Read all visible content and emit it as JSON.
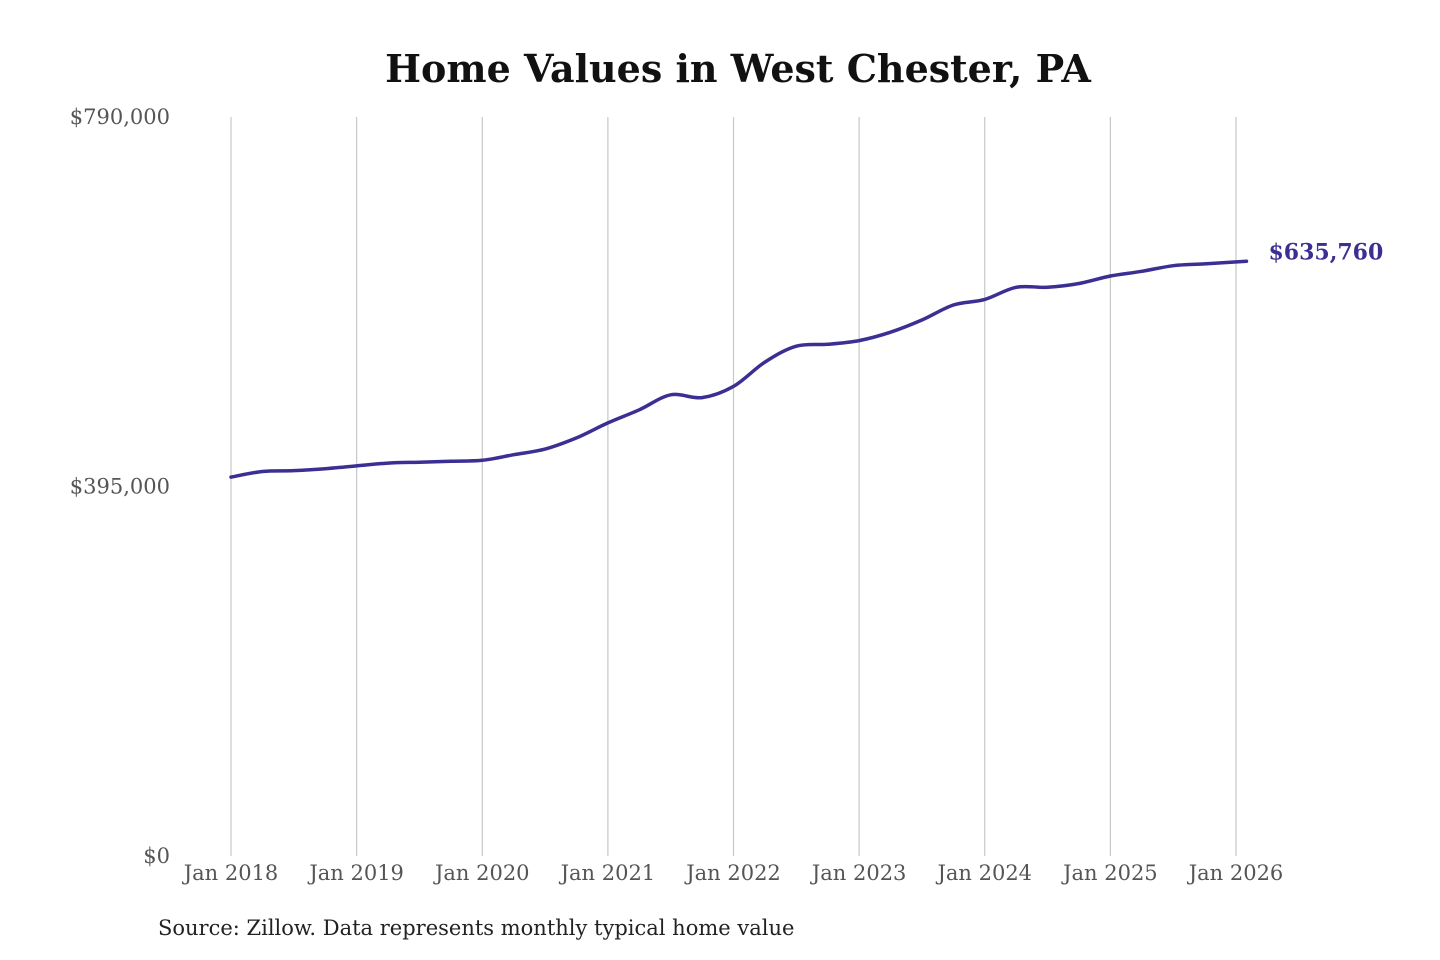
{
  "chart_data": {
    "type": "line",
    "title": "Home Values in West Chester, PA",
    "source": "Source: Zillow. Data represents monthly typical home value",
    "ylim": [
      0,
      790000
    ],
    "y_ticks": [
      0,
      395000,
      790000
    ],
    "y_tick_labels": [
      "$0",
      "$395,000",
      "$790,000"
    ],
    "x_ticks": [
      "Jan 2018",
      "Jan 2019",
      "Jan 2020",
      "Jan 2021",
      "Jan 2022",
      "Jan 2023",
      "Jan 2024",
      "Jan 2025",
      "Jan 2026"
    ],
    "grid": "vertical",
    "line_color": "#3b2f93",
    "series": [
      {
        "end_label": "$635,760",
        "points": [
          [
            "2018-01",
            405000
          ],
          [
            "2018-04",
            411000
          ],
          [
            "2018-07",
            412000
          ],
          [
            "2018-10",
            414000
          ],
          [
            "2019-01",
            417000
          ],
          [
            "2019-04",
            420000
          ],
          [
            "2019-07",
            421000
          ],
          [
            "2019-10",
            422000
          ],
          [
            "2020-01",
            423000
          ],
          [
            "2020-04",
            429000
          ],
          [
            "2020-07",
            435000
          ],
          [
            "2020-10",
            447000
          ],
          [
            "2021-01",
            463000
          ],
          [
            "2021-04",
            477000
          ],
          [
            "2021-07",
            493000
          ],
          [
            "2021-10",
            490000
          ],
          [
            "2022-01",
            502000
          ],
          [
            "2022-04",
            528000
          ],
          [
            "2022-07",
            545000
          ],
          [
            "2022-10",
            547000
          ],
          [
            "2023-01",
            551000
          ],
          [
            "2023-04",
            560000
          ],
          [
            "2023-07",
            573000
          ],
          [
            "2023-10",
            589000
          ],
          [
            "2024-01",
            595000
          ],
          [
            "2024-04",
            608000
          ],
          [
            "2024-07",
            608000
          ],
          [
            "2024-10",
            612000
          ],
          [
            "2025-01",
            620000
          ],
          [
            "2025-04",
            625000
          ],
          [
            "2025-07",
            631000
          ],
          [
            "2025-10",
            633000
          ],
          [
            "2026-02",
            635760
          ]
        ]
      }
    ]
  }
}
